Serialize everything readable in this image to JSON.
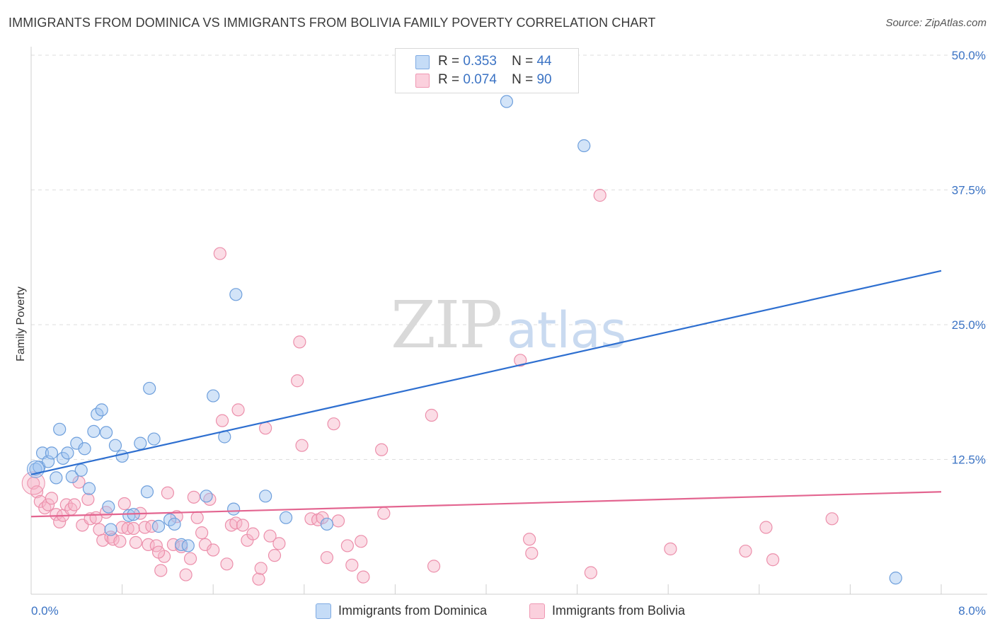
{
  "title": "IMMIGRANTS FROM DOMINICA VS IMMIGRANTS FROM BOLIVIA FAMILY POVERTY CORRELATION CHART",
  "source": "Source: ZipAtlas.com",
  "watermark": {
    "zip": "ZIP",
    "atlas": "atlas"
  },
  "legend_top": {
    "rows": [
      {
        "r_label": "R =",
        "r_value": "0.353",
        "n_label": "N =",
        "n_value": "44",
        "color": "#9dc3f0"
      },
      {
        "r_label": "R =",
        "r_value": "0.074",
        "n_label": "N =",
        "n_value": "90",
        "color": "#f7b3c7"
      }
    ]
  },
  "legend_bottom": [
    {
      "label": "Immigrants from Dominica",
      "color": "#9dc3f0"
    },
    {
      "label": "Immigrants from Bolivia",
      "color": "#f7b3c7"
    }
  ],
  "chart_data": {
    "type": "scatter",
    "title": "IMMIGRANTS FROM DOMINICA VS IMMIGRANTS FROM BOLIVIA FAMILY POVERTY CORRELATION CHART",
    "xlabel": "",
    "ylabel": "Family Poverty",
    "xlim": [
      0,
      8
    ],
    "ylim": [
      0,
      50
    ],
    "x_tick_labels": [
      "0.0%",
      "8.0%"
    ],
    "y_ticks": [
      12.5,
      25.0,
      37.5,
      50.0
    ],
    "y_tick_labels": [
      "12.5%",
      "25.0%",
      "37.5%",
      "50.0%"
    ],
    "grid": true,
    "series": [
      {
        "name": "Immigrants from Dominica",
        "color": "#9dc3f0",
        "stroke": "#6e9fdc",
        "line_color": "#2e6fd0",
        "trend": {
          "x": [
            0,
            8
          ],
          "y": [
            11.1,
            30.0
          ]
        },
        "points": [
          [
            0.04,
            11.6
          ],
          [
            0.07,
            11.8
          ],
          [
            0.1,
            13.1
          ],
          [
            0.15,
            12.3
          ],
          [
            0.18,
            13.1
          ],
          [
            0.22,
            10.8
          ],
          [
            0.25,
            15.3
          ],
          [
            0.28,
            12.6
          ],
          [
            0.32,
            13.1
          ],
          [
            0.36,
            10.9
          ],
          [
            0.4,
            14.0
          ],
          [
            0.44,
            11.5
          ],
          [
            0.47,
            13.5
          ],
          [
            0.51,
            9.8
          ],
          [
            0.55,
            15.1
          ],
          [
            0.58,
            16.7
          ],
          [
            0.62,
            17.1
          ],
          [
            0.66,
            15.0
          ],
          [
            0.7,
            6.0
          ],
          [
            0.74,
            13.8
          ],
          [
            0.8,
            12.8
          ],
          [
            0.86,
            7.3
          ],
          [
            0.9,
            7.4
          ],
          [
            0.96,
            14.0
          ],
          [
            1.02,
            9.5
          ],
          [
            1.04,
            19.1
          ],
          [
            1.08,
            14.4
          ],
          [
            1.22,
            6.9
          ],
          [
            1.26,
            6.5
          ],
          [
            1.32,
            4.6
          ],
          [
            1.38,
            4.5
          ],
          [
            1.54,
            9.1
          ],
          [
            1.6,
            18.4
          ],
          [
            1.7,
            14.6
          ],
          [
            1.78,
            7.9
          ],
          [
            1.8,
            27.8
          ],
          [
            2.06,
            9.1
          ],
          [
            2.24,
            7.1
          ],
          [
            2.6,
            6.5
          ],
          [
            4.18,
            45.7
          ],
          [
            4.86,
            41.6
          ],
          [
            7.6,
            1.5
          ],
          [
            0.68,
            8.1
          ],
          [
            1.12,
            6.3
          ]
        ]
      },
      {
        "name": "Immigrants from Bolivia",
        "color": "#f7b3c7",
        "stroke": "#ec8fab",
        "line_color": "#e36590",
        "trend": {
          "x": [
            0,
            8
          ],
          "y": [
            7.2,
            9.5
          ]
        },
        "points": [
          [
            0.02,
            10.3
          ],
          [
            0.05,
            9.5
          ],
          [
            0.08,
            8.6
          ],
          [
            0.12,
            8.0
          ],
          [
            0.15,
            8.3
          ],
          [
            0.18,
            8.9
          ],
          [
            0.22,
            7.4
          ],
          [
            0.25,
            6.7
          ],
          [
            0.28,
            7.3
          ],
          [
            0.31,
            8.3
          ],
          [
            0.35,
            7.9
          ],
          [
            0.38,
            8.3
          ],
          [
            0.42,
            10.4
          ],
          [
            0.45,
            6.4
          ],
          [
            0.5,
            8.8
          ],
          [
            0.52,
            7.0
          ],
          [
            0.57,
            7.1
          ],
          [
            0.6,
            6.0
          ],
          [
            0.63,
            5.0
          ],
          [
            0.66,
            7.6
          ],
          [
            0.7,
            5.3
          ],
          [
            0.72,
            5.1
          ],
          [
            0.78,
            4.9
          ],
          [
            0.8,
            6.2
          ],
          [
            0.82,
            8.4
          ],
          [
            0.85,
            6.1
          ],
          [
            0.9,
            6.1
          ],
          [
            0.92,
            4.8
          ],
          [
            0.96,
            7.5
          ],
          [
            1.0,
            6.2
          ],
          [
            1.03,
            4.6
          ],
          [
            1.06,
            6.3
          ],
          [
            1.1,
            4.5
          ],
          [
            1.14,
            2.2
          ],
          [
            1.17,
            3.5
          ],
          [
            1.2,
            9.4
          ],
          [
            1.25,
            4.6
          ],
          [
            1.28,
            7.2
          ],
          [
            1.32,
            4.4
          ],
          [
            1.36,
            1.8
          ],
          [
            1.4,
            3.3
          ],
          [
            1.43,
            9.0
          ],
          [
            1.46,
            7.1
          ],
          [
            1.5,
            5.7
          ],
          [
            1.53,
            4.6
          ],
          [
            1.57,
            8.8
          ],
          [
            1.6,
            4.1
          ],
          [
            1.66,
            31.6
          ],
          [
            1.68,
            16.1
          ],
          [
            1.72,
            2.8
          ],
          [
            1.76,
            6.4
          ],
          [
            1.8,
            6.6
          ],
          [
            1.82,
            17.1
          ],
          [
            1.86,
            6.4
          ],
          [
            1.9,
            5.0
          ],
          [
            1.95,
            5.6
          ],
          [
            2.0,
            1.4
          ],
          [
            2.02,
            2.4
          ],
          [
            2.06,
            15.4
          ],
          [
            2.1,
            5.4
          ],
          [
            2.14,
            3.6
          ],
          [
            2.18,
            4.7
          ],
          [
            2.34,
            19.8
          ],
          [
            2.36,
            23.4
          ],
          [
            2.38,
            13.8
          ],
          [
            2.46,
            7.0
          ],
          [
            2.52,
            6.9
          ],
          [
            2.56,
            7.1
          ],
          [
            2.6,
            3.4
          ],
          [
            2.66,
            15.8
          ],
          [
            2.7,
            6.8
          ],
          [
            2.78,
            4.5
          ],
          [
            2.82,
            2.7
          ],
          [
            2.9,
            4.9
          ],
          [
            2.92,
            1.6
          ],
          [
            3.08,
            13.4
          ],
          [
            3.1,
            7.5
          ],
          [
            3.52,
            16.6
          ],
          [
            3.54,
            2.6
          ],
          [
            4.3,
            21.7
          ],
          [
            4.38,
            5.1
          ],
          [
            4.4,
            3.8
          ],
          [
            4.92,
            2.0
          ],
          [
            5.0,
            37.0
          ],
          [
            5.62,
            4.2
          ],
          [
            6.28,
            4.0
          ],
          [
            6.46,
            6.2
          ],
          [
            6.52,
            3.2
          ],
          [
            7.04,
            7.0
          ],
          [
            1.12,
            3.9
          ]
        ]
      }
    ]
  }
}
